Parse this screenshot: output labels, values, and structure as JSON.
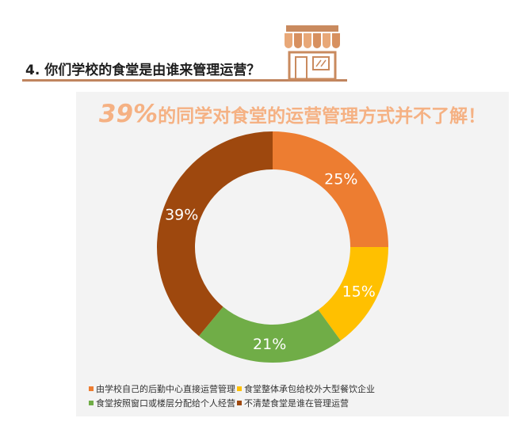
{
  "header": {
    "question": "4. 你们学校的食堂是由谁来管理运营？",
    "icon": "storefront-icon"
  },
  "card": {
    "headline_pct": "39%",
    "headline_rest": "的同学对食堂的运营管理方式并不了解！"
  },
  "chart_data": {
    "type": "pie",
    "donut": true,
    "categories": [
      "由学校自己的后勤中心直接运营管理",
      "食堂整体承包给校外大型餐饮企业",
      "食堂按照窗口或楼层分配给个人经营",
      "不清楚食堂是谁在管理运营"
    ],
    "values": [
      25,
      15,
      21,
      39
    ],
    "data_labels": [
      "25%",
      "15%",
      "21%",
      "39%"
    ],
    "colors": [
      "#ed7d31",
      "#ffc000",
      "#70ad47",
      "#9e480e"
    ],
    "legend_position": "bottom"
  }
}
